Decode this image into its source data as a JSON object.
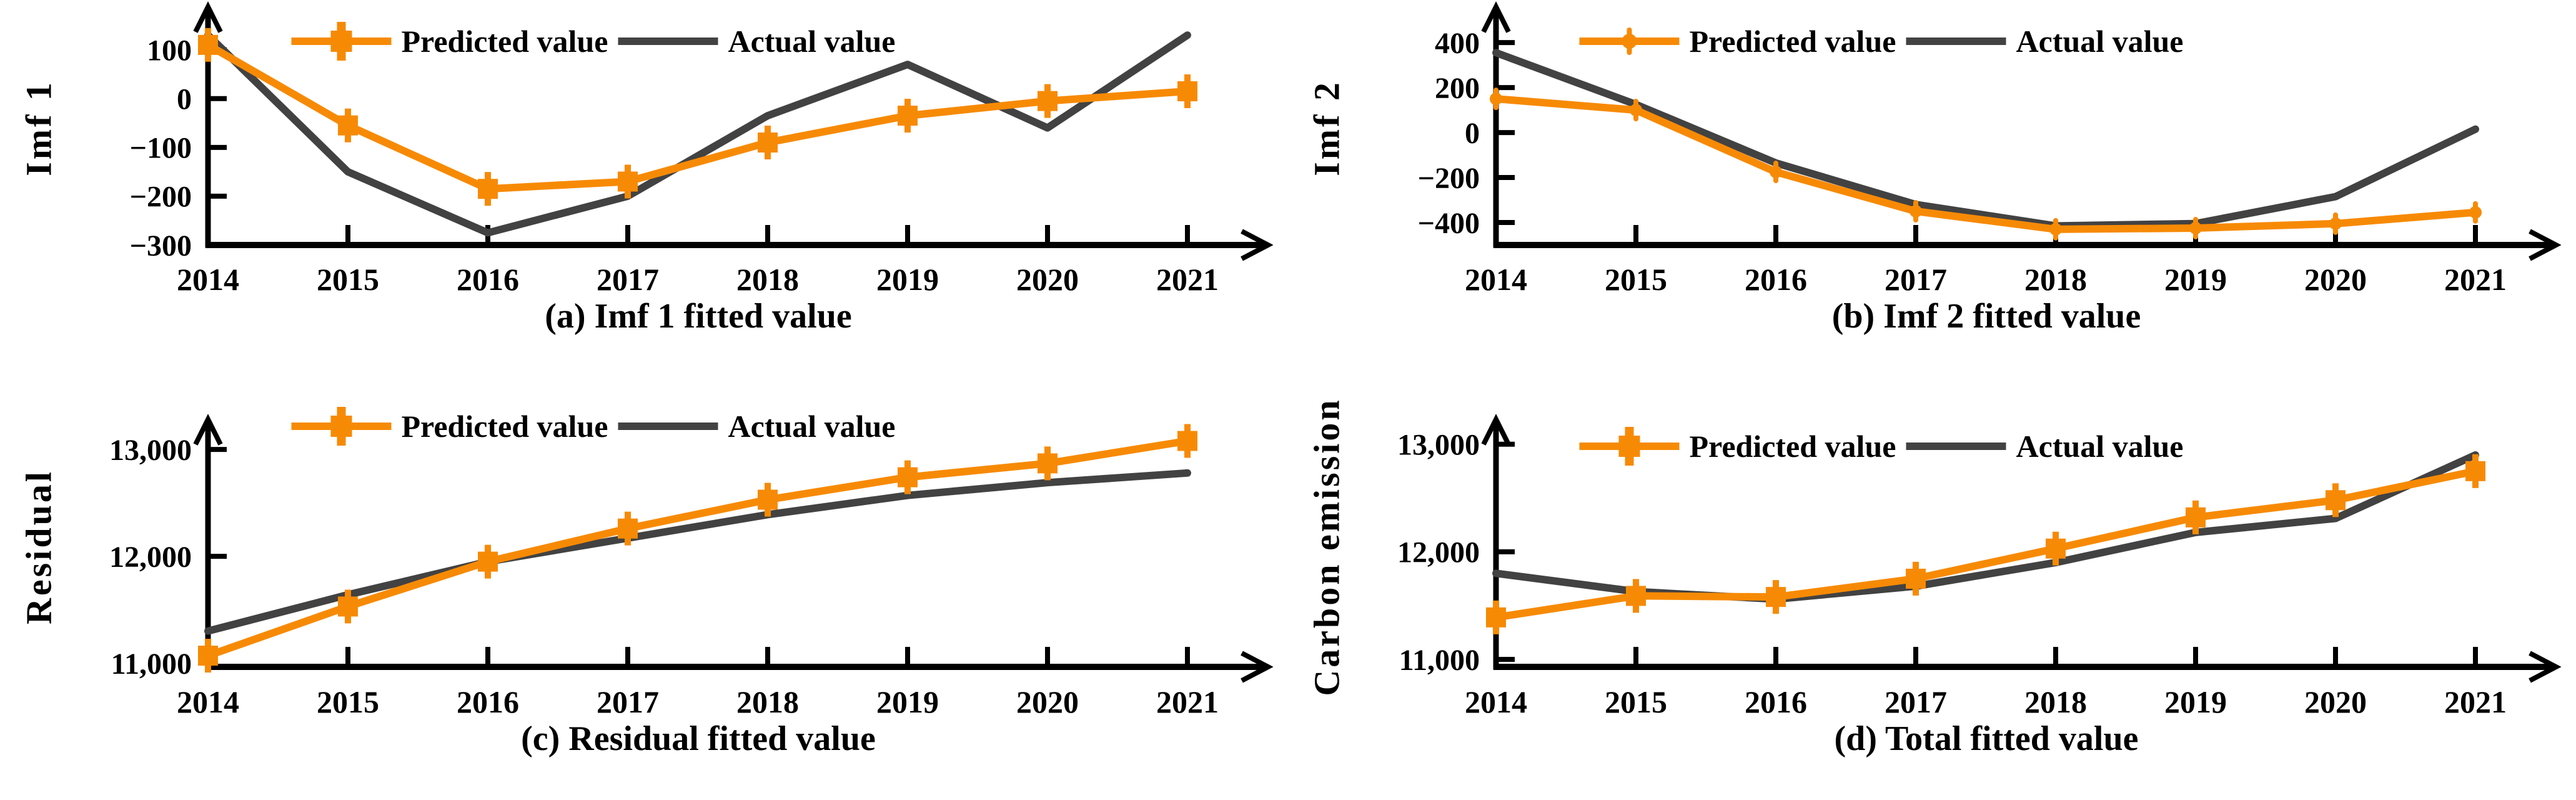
{
  "legend": {
    "predicted": "Predicted value",
    "actual": "Actual value"
  },
  "colors": {
    "predicted": "#F78A05",
    "actual": "#424242",
    "axis": "#000000",
    "background": "#FFFFFF"
  },
  "x_tick_labels": [
    "2014",
    "2015",
    "2016",
    "2017",
    "2018",
    "2019",
    "2020",
    "2021"
  ],
  "chart_data": [
    {
      "type": "line",
      "title": "(a) Imf 1 fitted value",
      "ylabel": "Imf 1",
      "marker": "square",
      "grid": false,
      "legend_position": "top-center",
      "x": [
        2014,
        2015,
        2016,
        2017,
        2018,
        2019,
        2020,
        2021
      ],
      "ylim": [
        -300,
        170
      ],
      "yticks": [
        {
          "value": 100,
          "label": "100"
        },
        {
          "value": 0,
          "label": "0"
        },
        {
          "value": -100,
          "label": "−100"
        },
        {
          "value": -200,
          "label": "−200"
        },
        {
          "value": -300,
          "label": "−300"
        }
      ],
      "series": [
        {
          "name": "Predicted value",
          "role": "predicted",
          "values": [
            110,
            -55,
            -185,
            -170,
            -90,
            -35,
            -5,
            15
          ]
        },
        {
          "name": "Actual value",
          "role": "actual",
          "values": [
            130,
            -150,
            -275,
            -200,
            -35,
            70,
            -60,
            130
          ]
        }
      ]
    },
    {
      "type": "line",
      "title": "(b) Imf 2 fitted value",
      "ylabel": "Imf 2",
      "marker": "circle",
      "grid": false,
      "legend_position": "top-center",
      "x": [
        2014,
        2015,
        2016,
        2017,
        2018,
        2019,
        2020,
        2021
      ],
      "ylim": [
        -500,
        520
      ],
      "yticks": [
        {
          "value": 400,
          "label": "400"
        },
        {
          "value": 200,
          "label": "200"
        },
        {
          "value": 0,
          "label": "0"
        },
        {
          "value": -200,
          "label": "−200"
        },
        {
          "value": -400,
          "label": "−400"
        }
      ],
      "series": [
        {
          "name": "Predicted value",
          "role": "predicted",
          "values": [
            150,
            100,
            -175,
            -350,
            -430,
            -425,
            -405,
            -355
          ]
        },
        {
          "name": "Actual value",
          "role": "actual",
          "values": [
            355,
            125,
            -135,
            -320,
            -415,
            -405,
            -285,
            15
          ]
        }
      ]
    },
    {
      "type": "line",
      "title": "(c) Residual fitted value",
      "ylabel": "Residual",
      "marker": "square",
      "grid": false,
      "legend_position": "top-center",
      "x": [
        2014,
        2015,
        2016,
        2017,
        2018,
        2019,
        2020,
        2021
      ],
      "ylim": [
        10965,
        13200
      ],
      "yticks": [
        {
          "value": 13000,
          "label": "13,000"
        },
        {
          "value": 12000,
          "label": "12,000"
        },
        {
          "value": 11000,
          "label": "11,000"
        }
      ],
      "series": [
        {
          "name": "Predicted value",
          "role": "predicted",
          "values": [
            11070,
            11530,
            11950,
            12260,
            12530,
            12740,
            12870,
            13080
          ]
        },
        {
          "name": "Actual value",
          "role": "actual",
          "values": [
            11300,
            11640,
            11950,
            12170,
            12390,
            12570,
            12690,
            12780
          ]
        }
      ]
    },
    {
      "type": "line",
      "title": "(d) Total fitted value",
      "ylabel": "Carbon emission",
      "marker": "square",
      "grid": false,
      "legend_position": "top-center",
      "x": [
        2014,
        2015,
        2016,
        2017,
        2018,
        2019,
        2020,
        2021
      ],
      "ylim": [
        10930,
        13150
      ],
      "yticks": [
        {
          "value": 13000,
          "label": "13,000"
        },
        {
          "value": 12000,
          "label": "12,000"
        },
        {
          "value": 11000,
          "label": "11,000"
        }
      ],
      "series": [
        {
          "name": "Predicted value",
          "role": "predicted",
          "values": [
            11390,
            11590,
            11580,
            11750,
            12030,
            12320,
            12480,
            12750
          ]
        },
        {
          "name": "Actual value",
          "role": "actual",
          "values": [
            11800,
            11630,
            11560,
            11680,
            11900,
            12180,
            12310,
            12900
          ]
        }
      ]
    }
  ]
}
